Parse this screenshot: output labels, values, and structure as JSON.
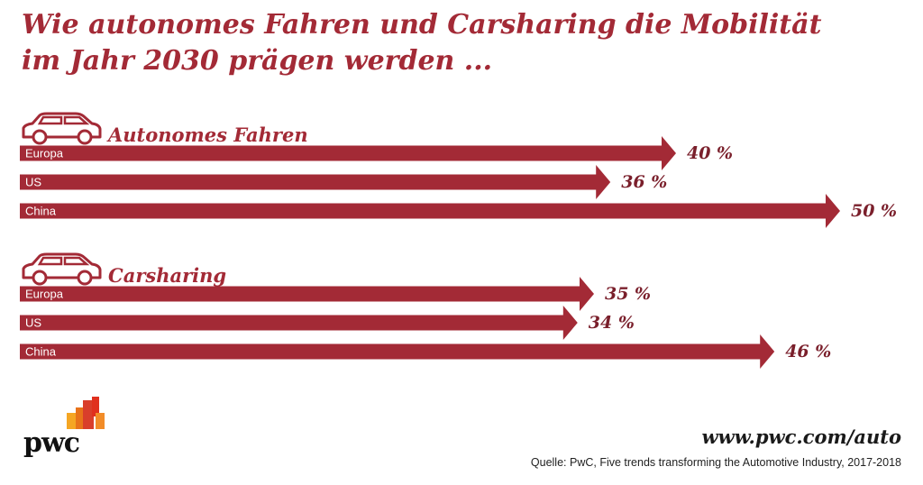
{
  "title": {
    "line1": "Wie autonomes Fahren und Carsharing die Mobilität",
    "line2": "im Jahr 2030 prägen werden ..."
  },
  "colors": {
    "accent": "#a32a36",
    "bar": "#a32a36",
    "value": "#7a1f2b"
  },
  "icons": {
    "section": "car-icon"
  },
  "chart_data": {
    "type": "bar",
    "orientation": "horizontal",
    "unit": "%",
    "xlim": [
      0,
      50
    ],
    "groups": [
      {
        "name": "Autonomes Fahren",
        "categories": [
          "Europa",
          "US",
          "China"
        ],
        "values": [
          40,
          36,
          50
        ],
        "value_labels": [
          "40 %",
          "36 %",
          "50 %"
        ]
      },
      {
        "name": "Carsharing",
        "categories": [
          "Europa",
          "US",
          "China"
        ],
        "values": [
          35,
          34,
          46
        ],
        "value_labels": [
          "35 %",
          "34 %",
          "46 %"
        ]
      }
    ]
  },
  "footer": {
    "url": "www.pwc.com/auto",
    "source": "Quelle: PwC, Five trends transforming the Automotive Industry, 2017-2018",
    "logo_text": "pwc"
  }
}
